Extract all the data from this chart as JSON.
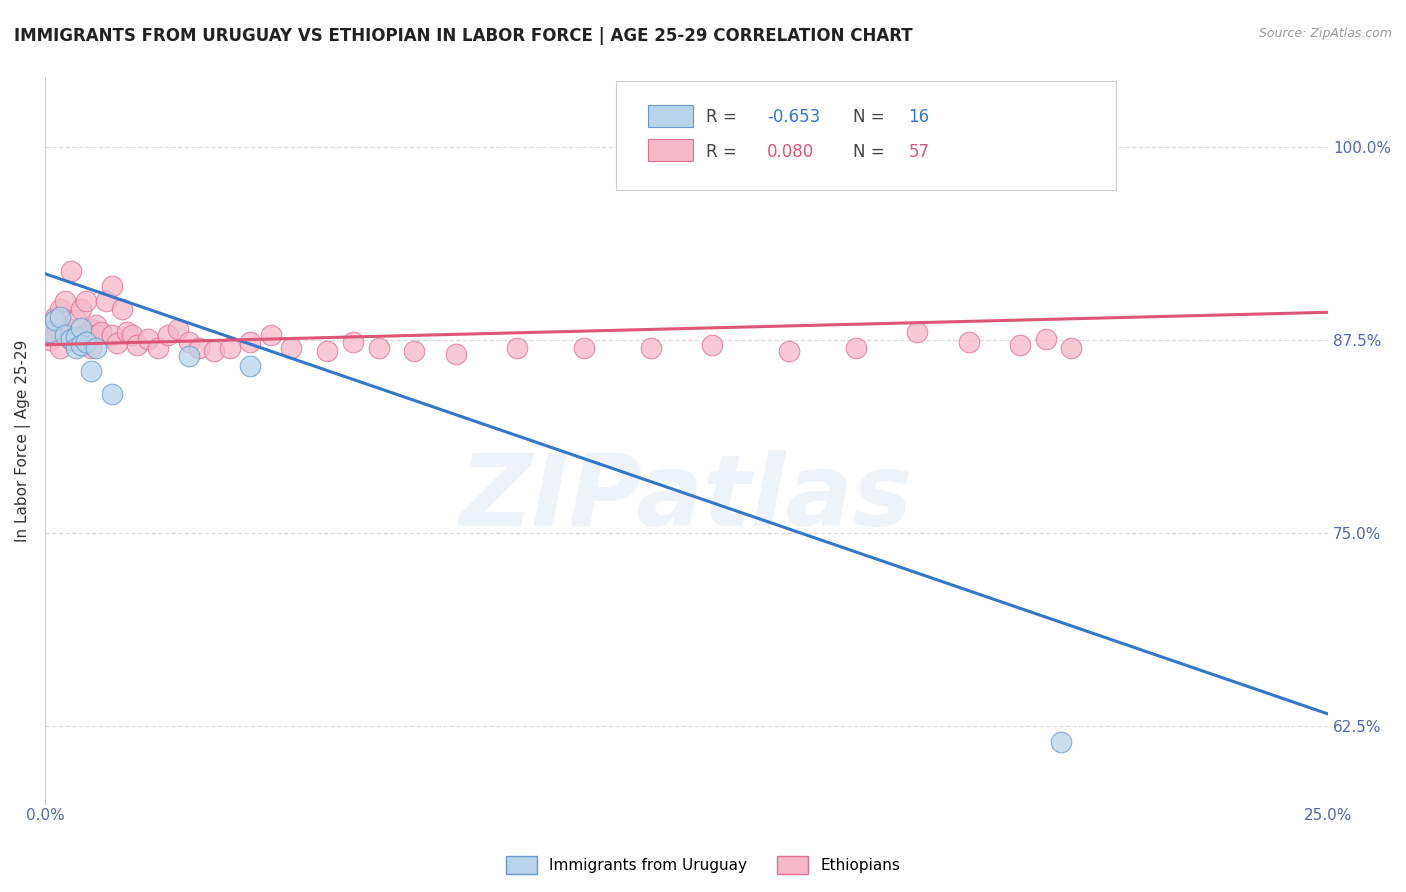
{
  "title": "IMMIGRANTS FROM URUGUAY VS ETHIOPIAN IN LABOR FORCE | AGE 25-29 CORRELATION CHART",
  "source": "Source: ZipAtlas.com",
  "ylabel": "In Labor Force | Age 25-29",
  "xlim": [
    0.0,
    0.25
  ],
  "ylim": [
    0.575,
    1.045
  ],
  "xtick_labels": [
    "0.0%",
    "25.0%"
  ],
  "xtick_positions": [
    0.0,
    0.25
  ],
  "ytick_labels": [
    "100.0%",
    "87.5%",
    "75.0%",
    "62.5%"
  ],
  "ytick_positions": [
    1.0,
    0.875,
    0.75,
    0.625
  ],
  "uruguay_color": "#b8d4ea",
  "ethiopia_color": "#f5b8c8",
  "uruguay_edge": "#6699cc",
  "ethiopia_edge": "#e07090",
  "trend_uruguay_color": "#3377cc",
  "trend_ethiopia_color": "#dd5577",
  "watermark_text": "ZIPatlas",
  "background_color": "#ffffff",
  "grid_color": "#dddddd",
  "ytick_color": "#5566aa",
  "xtick_color": "#5566aa",
  "uruguay_trend_x0": 0.0,
  "uruguay_trend_y0": 0.918,
  "uruguay_trend_x1": 0.25,
  "uruguay_trend_y1": 0.633,
  "ethiopia_trend_x0": 0.0,
  "ethiopia_trend_y0": 0.872,
  "ethiopia_trend_x1": 0.25,
  "ethiopia_trend_y1": 0.893,
  "uruguay_x": [
    0.001,
    0.002,
    0.003,
    0.004,
    0.005,
    0.006,
    0.006,
    0.007,
    0.007,
    0.008,
    0.009,
    0.01,
    0.013,
    0.028,
    0.04,
    0.198
  ],
  "uruguay_y": [
    0.88,
    0.888,
    0.89,
    0.878,
    0.876,
    0.877,
    0.87,
    0.883,
    0.872,
    0.874,
    0.855,
    0.87,
    0.84,
    0.865,
    0.858,
    0.615
  ],
  "ethiopia_x": [
    0.001,
    0.001,
    0.002,
    0.002,
    0.003,
    0.003,
    0.004,
    0.004,
    0.005,
    0.005,
    0.005,
    0.006,
    0.006,
    0.007,
    0.007,
    0.008,
    0.008,
    0.009,
    0.009,
    0.01,
    0.01,
    0.011,
    0.012,
    0.013,
    0.013,
    0.014,
    0.015,
    0.016,
    0.017,
    0.018,
    0.02,
    0.022,
    0.024,
    0.026,
    0.028,
    0.03,
    0.033,
    0.036,
    0.04,
    0.044,
    0.048,
    0.055,
    0.06,
    0.065,
    0.072,
    0.08,
    0.092,
    0.105,
    0.118,
    0.13,
    0.145,
    0.158,
    0.17,
    0.18,
    0.19,
    0.195,
    0.2
  ],
  "ethiopia_y": [
    0.88,
    0.875,
    0.89,
    0.878,
    0.895,
    0.87,
    0.9,
    0.88,
    0.882,
    0.875,
    0.92,
    0.888,
    0.876,
    0.895,
    0.872,
    0.9,
    0.878,
    0.882,
    0.87,
    0.885,
    0.878,
    0.88,
    0.9,
    0.91,
    0.878,
    0.873,
    0.895,
    0.88,
    0.878,
    0.872,
    0.876,
    0.87,
    0.878,
    0.882,
    0.874,
    0.87,
    0.868,
    0.87,
    0.874,
    0.878,
    0.87,
    0.868,
    0.874,
    0.87,
    0.868,
    0.866,
    0.87,
    0.87,
    0.87,
    0.872,
    0.868,
    0.87,
    0.88,
    0.874,
    0.872,
    0.876,
    0.87
  ]
}
